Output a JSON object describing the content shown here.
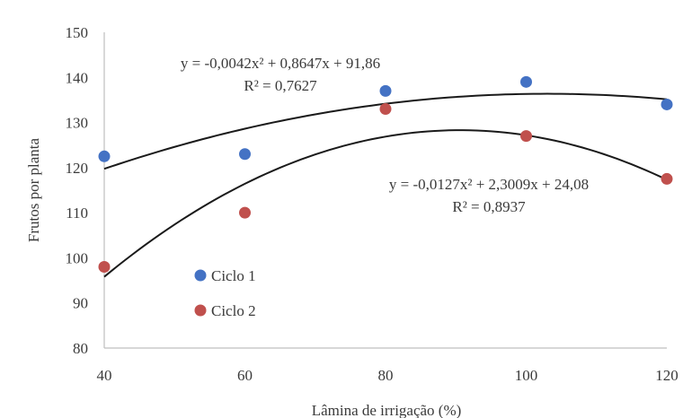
{
  "chart_data": {
    "type": "scatter",
    "title": "",
    "xlabel": "Lâmina de irrigação (%)",
    "ylabel": "Frutos por planta",
    "xlim": [
      40,
      120
    ],
    "ylim": [
      80,
      150
    ],
    "x_ticks": [
      "40",
      "60",
      "80",
      "100",
      "120"
    ],
    "y_ticks": [
      "80",
      "90",
      "100",
      "110",
      "120",
      "130",
      "140",
      "150"
    ],
    "grid": false,
    "legend_position": "left",
    "series": [
      {
        "name": "Ciclo 1",
        "color": "#4472c4",
        "x": [
          40,
          60,
          80,
          100,
          120
        ],
        "y": [
          122.5,
          123,
          137,
          139,
          134
        ],
        "trendline": {
          "type": "polynomial",
          "a": -0.0042,
          "b": 0.8647,
          "c": 91.86,
          "equation": "y = -0,0042x² + 0,8647x + 91,86",
          "r2": "R² = 0,7627"
        }
      },
      {
        "name": "Ciclo 2",
        "color": "#c0504d",
        "x": [
          40,
          60,
          80,
          100,
          120
        ],
        "y": [
          98,
          110,
          133,
          127,
          117.5
        ],
        "trendline": {
          "type": "polynomial",
          "a": -0.0127,
          "b": 2.3009,
          "c": 24.08,
          "equation": "y = -0,0127x² + 2,3009x + 24,08",
          "r2": "R² = 0,8937"
        }
      }
    ]
  }
}
